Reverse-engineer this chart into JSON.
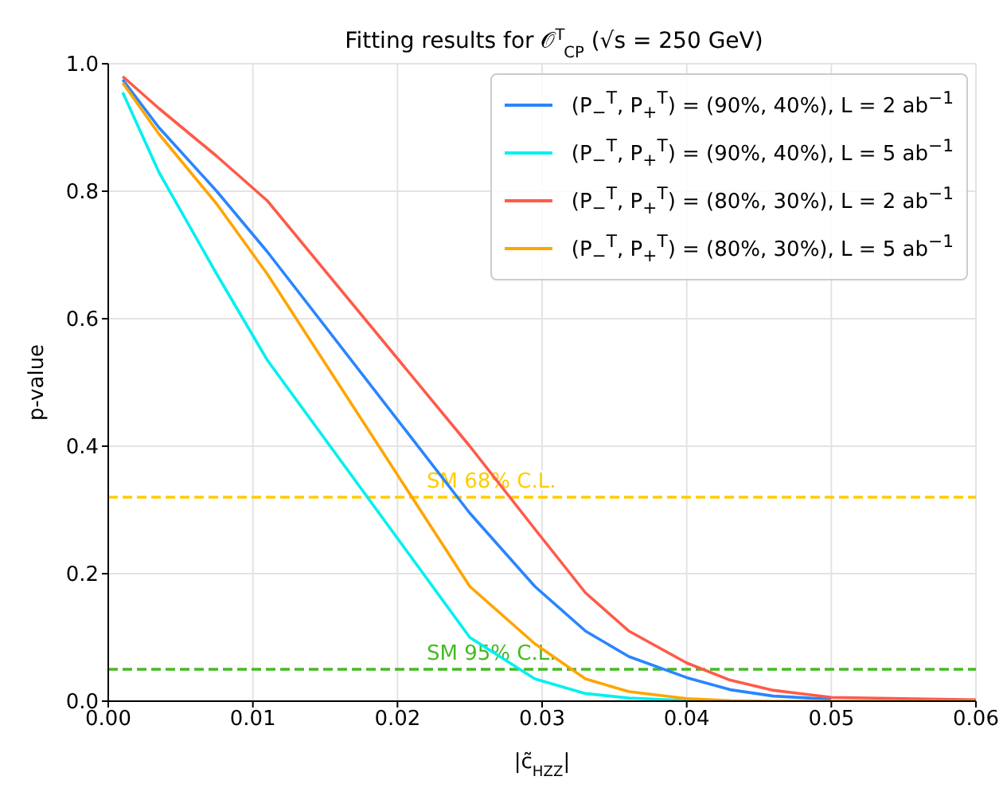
{
  "chart_data": {
    "type": "line",
    "title": "Fitting results for 𝒪$^{T}$$_{CP}$  (√s = 250 GeV)",
    "xlabel": "|c̃$_{HZZ}$|",
    "ylabel": "p-value",
    "x": [
      0.001,
      0.0035,
      0.0075,
      0.011,
      0.025,
      0.0295,
      0.033,
      0.036,
      0.04,
      0.043,
      0.046,
      0.05,
      0.06
    ],
    "series": [
      {
        "name": "(P$_{−}$$^{T}$, P$_{+}$$^{T}$) = (90%, 40%), L = 2 ab$^{−1}$",
        "color": "#2a85ff",
        "values": [
          0.975,
          0.9,
          0.8,
          0.705,
          0.295,
          0.18,
          0.11,
          0.07,
          0.037,
          0.018,
          0.008,
          0.003,
          null
        ]
      },
      {
        "name": "(P$_{−}$$^{T}$, P$_{+}$$^{T}$) = (90%, 40%), L = 5 ab$^{−1}$",
        "color": "#00f0f0",
        "values": [
          0.955,
          0.83,
          0.67,
          0.535,
          0.1,
          0.035,
          0.012,
          0.005,
          0.001,
          0,
          null,
          null,
          null
        ]
      },
      {
        "name": "(P$_{−}$$^{T}$, P$_{+}$$^{T}$) = (80%, 30%), L = 2 ab$^{−1}$",
        "color": "#ff5a48",
        "values": [
          0.98,
          0.93,
          0.855,
          0.785,
          0.4,
          0.27,
          0.17,
          0.11,
          0.06,
          0.033,
          0.017,
          0.006,
          0.002
        ]
      },
      {
        "name": "(P$_{−}$$^{T}$, P$_{+}$$^{T}$) = (80%, 30%), L = 5 ab$^{−1}$",
        "color": "#ffa500",
        "values": [
          0.97,
          0.89,
          0.78,
          0.67,
          0.18,
          0.09,
          0.035,
          0.015,
          0.004,
          0.001,
          0,
          0,
          0
        ]
      }
    ],
    "xlim": [
      0,
      0.06
    ],
    "xticks": [
      {
        "value": 0,
        "label": "0.00"
      },
      {
        "value": 0.01,
        "label": "0.01"
      },
      {
        "value": 0.02,
        "label": "0.02"
      },
      {
        "value": 0.03,
        "label": "0.03"
      },
      {
        "value": 0.04,
        "label": "0.04"
      },
      {
        "value": 0.05,
        "label": "0.05"
      },
      {
        "value": 0.06,
        "label": "0.06"
      }
    ],
    "ylim": [
      0,
      1
    ],
    "yticks": [
      {
        "value": 0,
        "label": "0.0"
      },
      {
        "value": 0.2,
        "label": "0.2"
      },
      {
        "value": 0.4,
        "label": "0.4"
      },
      {
        "value": 0.6,
        "label": "0.6"
      },
      {
        "value": 0.8,
        "label": "0.8"
      },
      {
        "value": 1,
        "label": "1.0"
      }
    ],
    "ref_lines": [
      {
        "axis": "y",
        "value": 0.32,
        "label": "SM 68% C.L.",
        "color": "#ffcc00",
        "line_style": "dashed"
      },
      {
        "axis": "y",
        "value": 0.05,
        "label": "SM 95% C.L.",
        "color": "#44bb22",
        "line_style": "dashed"
      }
    ],
    "grid": true,
    "legend": "top right",
    "marker": "none",
    "line_style": "solid"
  }
}
